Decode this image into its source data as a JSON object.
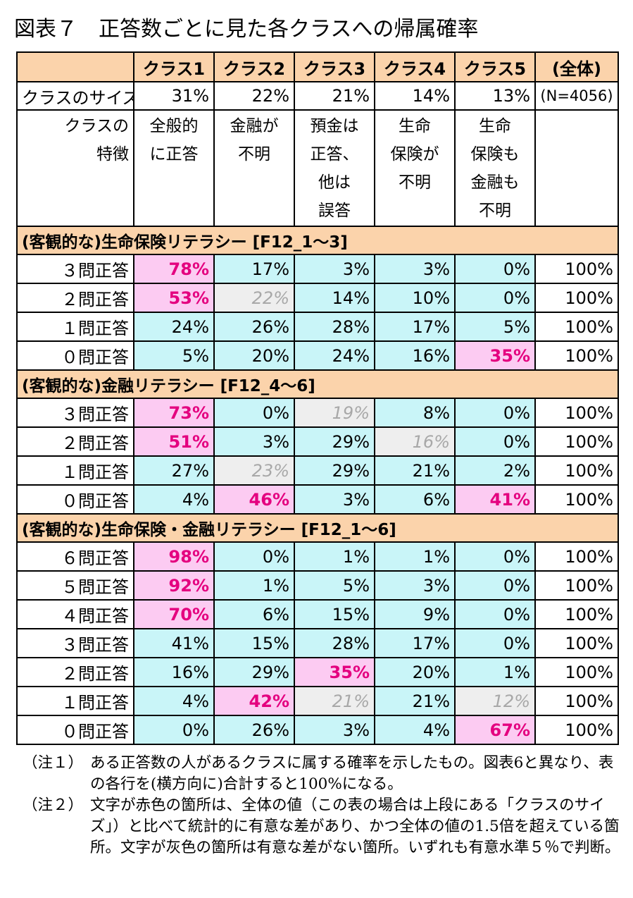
{
  "title": "図表７　正答数ごとに見た各クラスへの帰属確率",
  "header": {
    "columns": [
      "クラス1",
      "クラス2",
      "クラス3",
      "クラス4",
      "クラス5",
      "(全体)"
    ]
  },
  "size_row": {
    "label": "クラスのサイズ",
    "values": [
      "31%",
      "22%",
      "21%",
      "14%",
      "13%"
    ],
    "total": "(N=4056)"
  },
  "feature_row": {
    "label": "クラスの\n特徴",
    "values": [
      "全般的\nに正答",
      "金融が\n不明",
      "預金は\n正答、\n他は\n誤答",
      "生命\n保険が\n不明",
      "生命\n保険も\n金融も\n不明"
    ]
  },
  "sections": [
    {
      "title": "(客観的な)生命保険リテラシー [F12_1～3]",
      "rows": [
        {
          "label": "３問正答",
          "cells": [
            {
              "v": "78%",
              "s": "hl"
            },
            {
              "v": "17%",
              "s": ""
            },
            {
              "v": "3%",
              "s": ""
            },
            {
              "v": "3%",
              "s": ""
            },
            {
              "v": "0%",
              "s": ""
            }
          ],
          "total": "100%"
        },
        {
          "label": "２問正答",
          "cells": [
            {
              "v": "53%",
              "s": "hl"
            },
            {
              "v": "22%",
              "s": "gray"
            },
            {
              "v": "14%",
              "s": ""
            },
            {
              "v": "10%",
              "s": ""
            },
            {
              "v": "0%",
              "s": ""
            }
          ],
          "total": "100%"
        },
        {
          "label": "１問正答",
          "cells": [
            {
              "v": "24%",
              "s": ""
            },
            {
              "v": "26%",
              "s": ""
            },
            {
              "v": "28%",
              "s": ""
            },
            {
              "v": "17%",
              "s": ""
            },
            {
              "v": "5%",
              "s": ""
            }
          ],
          "total": "100%"
        },
        {
          "label": "０問正答",
          "cells": [
            {
              "v": "5%",
              "s": ""
            },
            {
              "v": "20%",
              "s": ""
            },
            {
              "v": "24%",
              "s": ""
            },
            {
              "v": "16%",
              "s": ""
            },
            {
              "v": "35%",
              "s": "hl"
            }
          ],
          "total": "100%"
        }
      ]
    },
    {
      "title": "(客観的な)金融リテラシー [F12_4～6]",
      "rows": [
        {
          "label": "３問正答",
          "cells": [
            {
              "v": "73%",
              "s": "hl"
            },
            {
              "v": "0%",
              "s": ""
            },
            {
              "v": "19%",
              "s": "gray"
            },
            {
              "v": "8%",
              "s": ""
            },
            {
              "v": "0%",
              "s": ""
            }
          ],
          "total": "100%"
        },
        {
          "label": "２問正答",
          "cells": [
            {
              "v": "51%",
              "s": "hl"
            },
            {
              "v": "3%",
              "s": ""
            },
            {
              "v": "29%",
              "s": ""
            },
            {
              "v": "16%",
              "s": "gray"
            },
            {
              "v": "0%",
              "s": ""
            }
          ],
          "total": "100%"
        },
        {
          "label": "１問正答",
          "cells": [
            {
              "v": "27%",
              "s": ""
            },
            {
              "v": "23%",
              "s": "gray"
            },
            {
              "v": "29%",
              "s": ""
            },
            {
              "v": "21%",
              "s": ""
            },
            {
              "v": "2%",
              "s": ""
            }
          ],
          "total": "100%"
        },
        {
          "label": "０問正答",
          "cells": [
            {
              "v": "4%",
              "s": ""
            },
            {
              "v": "46%",
              "s": "hl"
            },
            {
              "v": "3%",
              "s": ""
            },
            {
              "v": "6%",
              "s": ""
            },
            {
              "v": "41%",
              "s": "hl"
            }
          ],
          "total": "100%"
        }
      ]
    },
    {
      "title": "(客観的な)生命保険・金融リテラシー [F12_1～6]",
      "rows": [
        {
          "label": "６問正答",
          "cells": [
            {
              "v": "98%",
              "s": "hl"
            },
            {
              "v": "0%",
              "s": ""
            },
            {
              "v": "1%",
              "s": ""
            },
            {
              "v": "1%",
              "s": ""
            },
            {
              "v": "0%",
              "s": ""
            }
          ],
          "total": "100%"
        },
        {
          "label": "５問正答",
          "cells": [
            {
              "v": "92%",
              "s": "hl"
            },
            {
              "v": "1%",
              "s": ""
            },
            {
              "v": "5%",
              "s": ""
            },
            {
              "v": "3%",
              "s": ""
            },
            {
              "v": "0%",
              "s": ""
            }
          ],
          "total": "100%"
        },
        {
          "label": "４問正答",
          "cells": [
            {
              "v": "70%",
              "s": "hl"
            },
            {
              "v": "6%",
              "s": ""
            },
            {
              "v": "15%",
              "s": ""
            },
            {
              "v": "9%",
              "s": ""
            },
            {
              "v": "0%",
              "s": ""
            }
          ],
          "total": "100%"
        },
        {
          "label": "３問正答",
          "cells": [
            {
              "v": "41%",
              "s": ""
            },
            {
              "v": "15%",
              "s": ""
            },
            {
              "v": "28%",
              "s": ""
            },
            {
              "v": "17%",
              "s": ""
            },
            {
              "v": "0%",
              "s": ""
            }
          ],
          "total": "100%"
        },
        {
          "label": "２問正答",
          "cells": [
            {
              "v": "16%",
              "s": ""
            },
            {
              "v": "29%",
              "s": ""
            },
            {
              "v": "35%",
              "s": "hl"
            },
            {
              "v": "20%",
              "s": ""
            },
            {
              "v": "1%",
              "s": ""
            }
          ],
          "total": "100%"
        },
        {
          "label": "１問正答",
          "cells": [
            {
              "v": "4%",
              "s": ""
            },
            {
              "v": "42%",
              "s": "hl"
            },
            {
              "v": "21%",
              "s": "gray"
            },
            {
              "v": "21%",
              "s": ""
            },
            {
              "v": "12%",
              "s": "gray"
            }
          ],
          "total": "100%"
        },
        {
          "label": "０問正答",
          "cells": [
            {
              "v": "0%",
              "s": ""
            },
            {
              "v": "26%",
              "s": ""
            },
            {
              "v": "3%",
              "s": ""
            },
            {
              "v": "4%",
              "s": ""
            },
            {
              "v": "67%",
              "s": "hl"
            }
          ],
          "total": "100%"
        }
      ]
    }
  ],
  "notes": [
    {
      "label": "（注１）",
      "text": "ある正答数の人があるクラスに属する確率を示したもの。図表6と異なり、表の各行を(横方向に)合計すると100%になる。"
    },
    {
      "label": "（注２）",
      "text": "文字が赤色の箇所は、全体の値（この表の場合は上段にある「クラスのサイズ」）と比べて統計的に有意な差があり、かつ全体の値の1.5倍を超えている箇所。文字が灰色の箇所は有意な差がない箇所。いずれも有意水準５％で判断。"
    }
  ],
  "colors": {
    "header_bg": "#fbd3ab",
    "cell_bg": "#c9f5f8",
    "highlight_bg": "#fccbf2",
    "highlight_text": "#e4007f",
    "gray_bg": "#eeeeee",
    "gray_text": "#a8a8a8"
  }
}
